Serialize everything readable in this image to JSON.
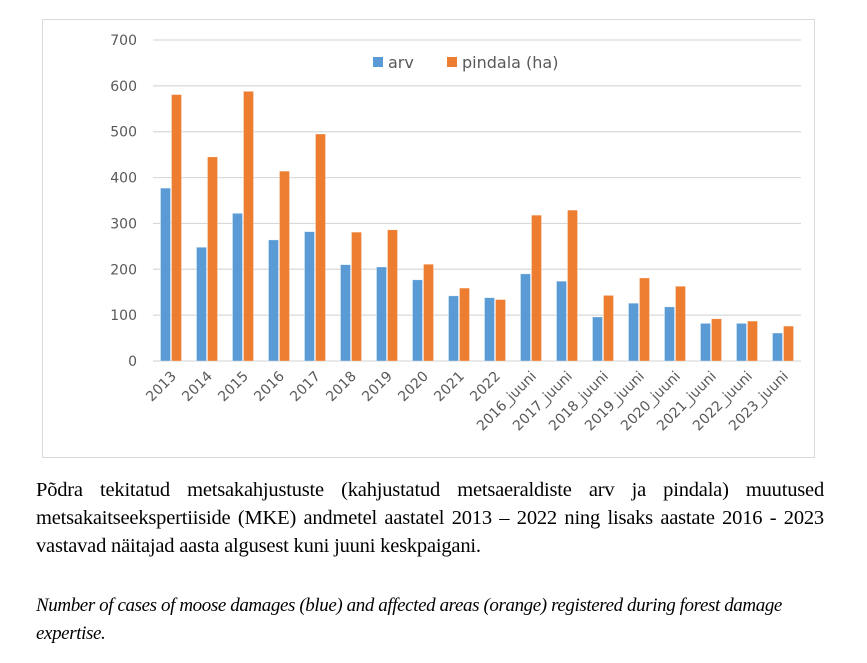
{
  "chart_data": {
    "type": "bar",
    "title": "",
    "xlabel": "",
    "ylabel": "",
    "ylim": [
      0,
      700
    ],
    "yticks": [
      0,
      100,
      200,
      300,
      400,
      500,
      600,
      700
    ],
    "grid": true,
    "legend_position": "top-center",
    "categories": [
      "2013",
      "2014",
      "2015",
      "2016",
      "2017",
      "2018",
      "2019",
      "2020",
      "2021",
      "2022",
      "2016_juuni",
      "2017_juuni",
      "2018_juuni",
      "2019_juuni",
      "2020_juuni",
      "2021_juuni",
      "2022_juuni",
      "2023_juuni"
    ],
    "series": [
      {
        "name": "arv",
        "color": "#5b9bd5",
        "values": [
          377,
          248,
          322,
          264,
          282,
          210,
          205,
          177,
          142,
          138,
          190,
          174,
          96,
          126,
          118,
          82,
          82,
          61
        ]
      },
      {
        "name": "pindala (ha)",
        "color": "#ed7d31",
        "values": [
          581,
          445,
          588,
          414,
          495,
          281,
          286,
          211,
          159,
          134,
          318,
          329,
          143,
          181,
          163,
          92,
          87,
          76
        ]
      }
    ]
  },
  "caption": {
    "estonian": "Põdra tekitatud metsakahjustuste (kahjustatud metsaeraldiste arv ja pindala) muutused metsakaitseekspertiiside (MKE) andmetel aastatel 2013 – 2022 ning lisaks aastate 2016 - 2023 vastavad näitajad aasta algusest kuni juuni keskpaigani.",
    "english": "Number of cases of moose damages (blue) and affected areas (orange) registered during forest damage expertise."
  }
}
